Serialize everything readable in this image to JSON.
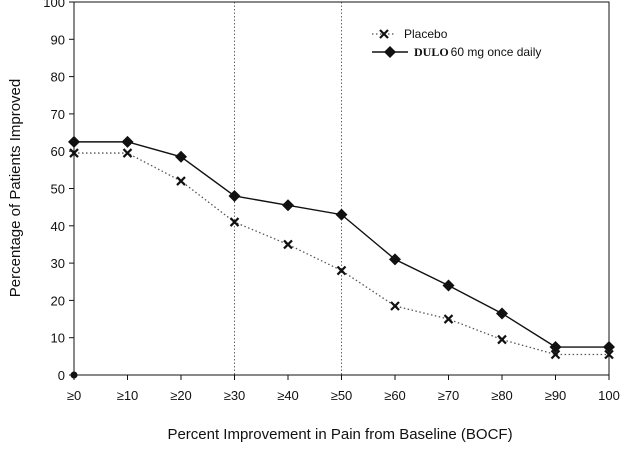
{
  "chart_data": {
    "type": "line",
    "categories": [
      "≥0",
      "≥10",
      "≥20",
      "≥30",
      "≥40",
      "≥50",
      "≥60",
      "≥70",
      "≥80",
      "≥90",
      "100"
    ],
    "xlabel": "Percent Improvement in Pain from Baseline (BOCF)",
    "ylabel": "Percentage of Patients Improved",
    "ylim": [
      0,
      100
    ],
    "yticks": [
      "0",
      "10",
      "20",
      "30",
      "40",
      "50",
      "60",
      "70",
      "80",
      "90",
      "100"
    ],
    "reference_lines_x": [
      "≥30",
      "≥50"
    ],
    "legend_position": "top-right",
    "series": [
      {
        "name": "Placebo",
        "values": [
          59.5,
          59.5,
          52,
          41,
          35,
          28,
          18.5,
          15,
          9.5,
          5.5,
          5.5
        ],
        "line_style": "dotted",
        "marker": "x",
        "color": "#111111"
      },
      {
        "name_bold": "DULO",
        "name": "60 mg once daily",
        "values": [
          62.5,
          62.5,
          58.5,
          48,
          45.5,
          43,
          31,
          24,
          16.5,
          7.5,
          7.5
        ],
        "line_style": "solid",
        "marker": "diamond",
        "color": "#111111"
      }
    ],
    "extra_point": {
      "x": "≥0",
      "y": 0
    }
  }
}
